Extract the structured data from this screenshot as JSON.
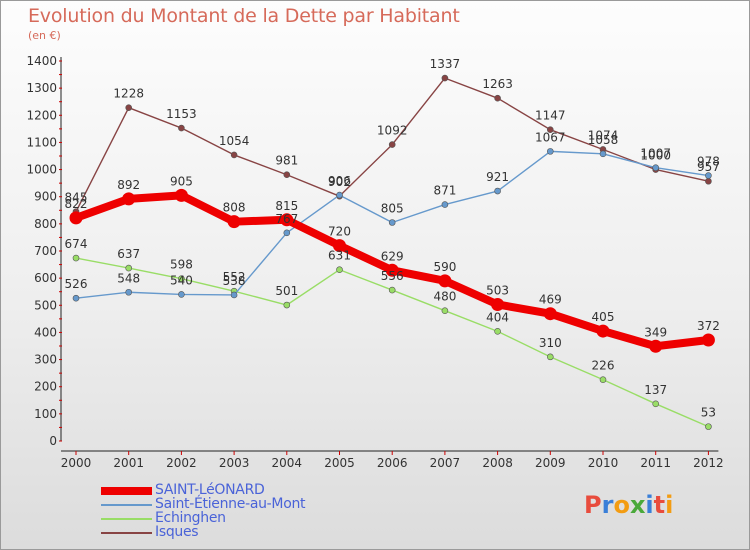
{
  "title": "Evolution du Montant de la Dette par Habitant",
  "subtitle": "(en €)",
  "logo_text": "Proxiti",
  "chart_data": {
    "type": "line",
    "title": "Evolution du Montant de la Dette par Habitant",
    "subtitle": "(en €)",
    "categories": [
      "2000",
      "2001",
      "2002",
      "2003",
      "2004",
      "2005",
      "2006",
      "2007",
      "2008",
      "2009",
      "2010",
      "2011",
      "2012"
    ],
    "ylim": [
      0,
      1400
    ],
    "yticks": [
      0,
      100,
      200,
      300,
      400,
      500,
      600,
      700,
      800,
      900,
      1000,
      1100,
      1200,
      1300,
      1400
    ],
    "legend_position": "bottom",
    "series": [
      {
        "name": "SAINT-LéONARD",
        "color": "#ee0000",
        "values": [
          822,
          892,
          905,
          808,
          815,
          720,
          629,
          590,
          503,
          469,
          405,
          349,
          372
        ]
      },
      {
        "name": "Saint-Étienne-au-Mont",
        "color": "#6699cc",
        "values": [
          526,
          548,
          540,
          538,
          767,
          906,
          805,
          871,
          921,
          1067,
          1058,
          1007,
          978
        ]
      },
      {
        "name": "Echinghen",
        "color": "#99dd66",
        "values": [
          674,
          637,
          598,
          552,
          501,
          631,
          556,
          480,
          404,
          310,
          226,
          137,
          53
        ]
      },
      {
        "name": "Isques",
        "color": "#884444",
        "values": [
          845,
          1228,
          1153,
          1054,
          981,
          902,
          1092,
          1337,
          1263,
          1147,
          1074,
          1000,
          957
        ]
      }
    ]
  }
}
